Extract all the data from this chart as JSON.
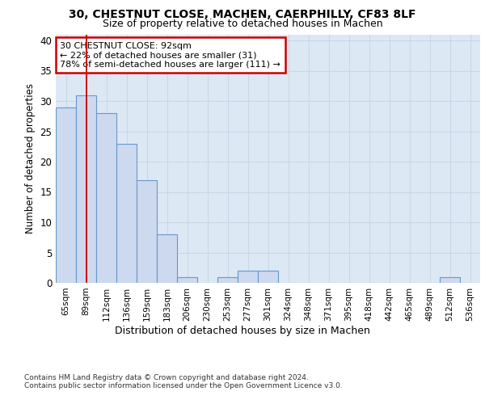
{
  "title1": "30, CHESTNUT CLOSE, MACHEN, CAERPHILLY, CF83 8LF",
  "title2": "Size of property relative to detached houses in Machen",
  "xlabel": "Distribution of detached houses by size in Machen",
  "ylabel": "Number of detached properties",
  "categories": [
    "65sqm",
    "89sqm",
    "112sqm",
    "136sqm",
    "159sqm",
    "183sqm",
    "206sqm",
    "230sqm",
    "253sqm",
    "277sqm",
    "301sqm",
    "324sqm",
    "348sqm",
    "371sqm",
    "395sqm",
    "418sqm",
    "442sqm",
    "465sqm",
    "489sqm",
    "512sqm",
    "536sqm"
  ],
  "values": [
    29,
    31,
    28,
    23,
    17,
    8,
    1,
    0,
    1,
    2,
    2,
    0,
    0,
    0,
    0,
    0,
    0,
    0,
    0,
    1,
    0
  ],
  "bar_color": "#ccd9ee",
  "bar_edge_color": "#6699cc",
  "red_line_x": 1,
  "annotation_text": "30 CHESTNUT CLOSE: 92sqm\n← 22% of detached houses are smaller (31)\n78% of semi-detached houses are larger (111) →",
  "annotation_box_color": "#ffffff",
  "annotation_box_edge": "#cc0000",
  "ylim": [
    0,
    41
  ],
  "yticks": [
    0,
    5,
    10,
    15,
    20,
    25,
    30,
    35,
    40
  ],
  "footer_text": "Contains HM Land Registry data © Crown copyright and database right 2024.\nContains public sector information licensed under the Open Government Licence v3.0.",
  "grid_color": "#c8d8e8",
  "background_color": "#dde8f5"
}
